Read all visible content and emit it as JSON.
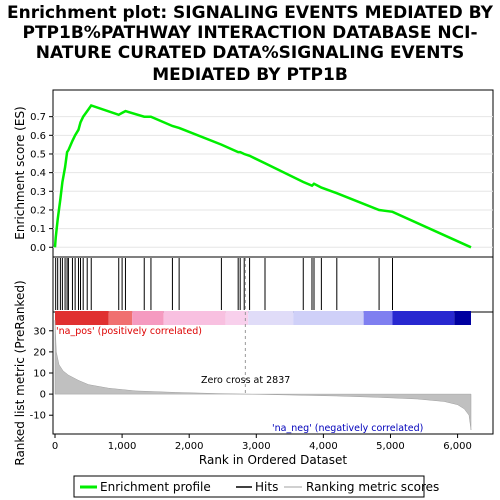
{
  "title_lines": [
    "Enrichment plot: SIGNALING EVENTS MEDIATED BY",
    "PTP1B%PATHWAY INTERACTION DATABASE NCI-",
    "NATURE CURATED DATA%SIGNALING EVENTS",
    "MEDIATED BY PTP1B"
  ],
  "labels": {
    "es_ylabel": "Enrichment score (ES)",
    "rank_ylabel": "Ranked list metric (PreRanked)",
    "xlabel": "Rank in Ordered Dataset",
    "pos_label": "'na_pos' (positively correlated)",
    "neg_label": "'na_neg' (negatively correlated)",
    "zero_cross": "Zero cross at 2837"
  },
  "legend": {
    "items": [
      {
        "label": "Enrichment profile",
        "color": "#00ee00"
      },
      {
        "label": "Hits",
        "color": "#000000"
      },
      {
        "label": "Ranking metric scores",
        "color": "#c0c0c0"
      }
    ]
  },
  "colors": {
    "es_line": "#00ee00",
    "hits": "#000000",
    "metric_fill": "#c0c0c0",
    "pos_text": "#dd0000",
    "neg_text": "#0000bb"
  },
  "chart_data": {
    "type": "line",
    "x_range": [
      0,
      6200
    ],
    "es_ylim": [
      -0.02,
      0.8
    ],
    "metric_ylim": [
      -17,
      37
    ],
    "x_ticks": [
      0,
      1000,
      2000,
      3000,
      4000,
      5000,
      6000
    ],
    "x_tick_labels": [
      "0",
      "1,000",
      "2,000",
      "3,000",
      "4,000",
      "5,000",
      "6,000"
    ],
    "es_ticks": [
      0.0,
      0.1,
      0.2,
      0.3,
      0.4,
      0.5,
      0.6,
      0.7
    ],
    "es_tick_labels": [
      "0.0",
      "0.1",
      "0.2",
      "0.3",
      "0.4",
      "0.5",
      "0.6",
      "0.7"
    ],
    "metric_ticks": [
      -10,
      0,
      10,
      20,
      30
    ],
    "metric_tick_labels": [
      "-10",
      "0",
      "10",
      "20",
      "30"
    ],
    "zero_cross": 2837,
    "hits": [
      10,
      40,
      80,
      110,
      150,
      180,
      200,
      260,
      300,
      350,
      380,
      420,
      480,
      540,
      950,
      1000,
      1050,
      1330,
      1430,
      1750,
      1850,
      2480,
      2730,
      2760,
      2820,
      2900,
      3130,
      3700,
      3830,
      3860,
      3970,
      4200,
      4830,
      5030
    ],
    "es_profile": [
      [
        0,
        0.0
      ],
      [
        10,
        0.05
      ],
      [
        40,
        0.15
      ],
      [
        80,
        0.26
      ],
      [
        110,
        0.35
      ],
      [
        150,
        0.43
      ],
      [
        180,
        0.51
      ],
      [
        200,
        0.52
      ],
      [
        260,
        0.57
      ],
      [
        300,
        0.6
      ],
      [
        350,
        0.63
      ],
      [
        380,
        0.67
      ],
      [
        420,
        0.7
      ],
      [
        480,
        0.73
      ],
      [
        540,
        0.76
      ],
      [
        950,
        0.71
      ],
      [
        1000,
        0.72
      ],
      [
        1050,
        0.73
      ],
      [
        1330,
        0.7
      ],
      [
        1430,
        0.7
      ],
      [
        1750,
        0.65
      ],
      [
        1850,
        0.64
      ],
      [
        2480,
        0.55
      ],
      [
        2730,
        0.51
      ],
      [
        2760,
        0.51
      ],
      [
        2820,
        0.5
      ],
      [
        2900,
        0.49
      ],
      [
        3130,
        0.45
      ],
      [
        3700,
        0.35
      ],
      [
        3830,
        0.33
      ],
      [
        3860,
        0.34
      ],
      [
        3970,
        0.32
      ],
      [
        4200,
        0.29
      ],
      [
        4830,
        0.2
      ],
      [
        5030,
        0.19
      ],
      [
        6200,
        0.0
      ]
    ],
    "metric_curve": [
      [
        0,
        35
      ],
      [
        20,
        20
      ],
      [
        60,
        14
      ],
      [
        120,
        11
      ],
      [
        200,
        9
      ],
      [
        350,
        6.5
      ],
      [
        500,
        4.5
      ],
      [
        800,
        2.8
      ],
      [
        1200,
        1.5
      ],
      [
        1800,
        0.8
      ],
      [
        2400,
        0.3
      ],
      [
        2837,
        0.0
      ],
      [
        3500,
        -0.4
      ],
      [
        4200,
        -0.9
      ],
      [
        4800,
        -1.5
      ],
      [
        5400,
        -2.3
      ],
      [
        5800,
        -3.5
      ],
      [
        6000,
        -5
      ],
      [
        6100,
        -7
      ],
      [
        6170,
        -10
      ],
      [
        6200,
        -17
      ]
    ],
    "color_band": [
      [
        0,
        800,
        "#e03030"
      ],
      [
        800,
        1150,
        "#f07070"
      ],
      [
        1150,
        1620,
        "#f59ac0"
      ],
      [
        1620,
        2540,
        "#f8c0e0"
      ],
      [
        2540,
        2880,
        "#f8d0ec"
      ],
      [
        2880,
        3550,
        "#e0dcf8"
      ],
      [
        3550,
        4600,
        "#cfd0f8"
      ],
      [
        4600,
        5030,
        "#7f7ff0"
      ],
      [
        5030,
        5950,
        "#2828d0"
      ],
      [
        5950,
        6200,
        "#0000a0"
      ]
    ]
  }
}
